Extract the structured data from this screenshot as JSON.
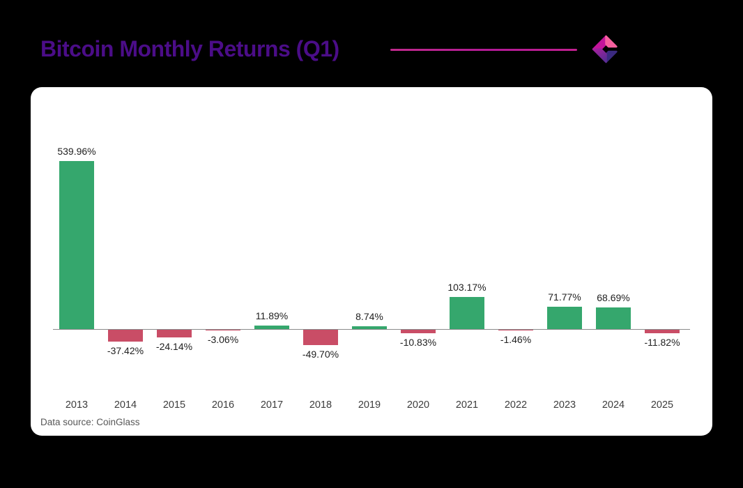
{
  "header": {
    "title": "Bitcoin Monthly Returns (Q1)",
    "title_color": "#4b0d88",
    "accent_line_colors": [
      "#c02a8c",
      "#c22090"
    ],
    "logo": {
      "name": "coinglass-logo",
      "colors": {
        "top_left": "#c3149b",
        "top_right": "#f6609f",
        "bottom_right": "#3b2a80",
        "bottom_left_start": "#a8219e",
        "bottom_left_end": "#5e2b95"
      }
    }
  },
  "chart_data": {
    "type": "bar",
    "title": "Bitcoin Monthly Returns (Q1)",
    "categories": [
      "2013",
      "2014",
      "2015",
      "2016",
      "2017",
      "2018",
      "2019",
      "2020",
      "2021",
      "2022",
      "2023",
      "2024",
      "2025"
    ],
    "values": [
      539.96,
      -37.42,
      -24.14,
      -3.06,
      11.89,
      -49.7,
      8.74,
      -10.83,
      103.17,
      -1.46,
      71.77,
      68.69,
      -11.82
    ],
    "value_labels": [
      "539.96%",
      "-37.42%",
      "-24.14%",
      "-3.06%",
      "11.89%",
      "-49.70%",
      "8.74%",
      "-10.83%",
      "103.17%",
      "-1.46%",
      "71.77%",
      "68.69%",
      "-11.82%"
    ],
    "xlabel": "",
    "ylabel": "",
    "ylim": [
      -60,
      560
    ],
    "grid": "off",
    "legend": "none",
    "value_label_position": "outside-end",
    "positive_color": "#35a76d",
    "negative_color": "#c94d66",
    "axis_color": "#8a8a8a"
  },
  "footer": {
    "source": "Data source: CoinGlass"
  }
}
